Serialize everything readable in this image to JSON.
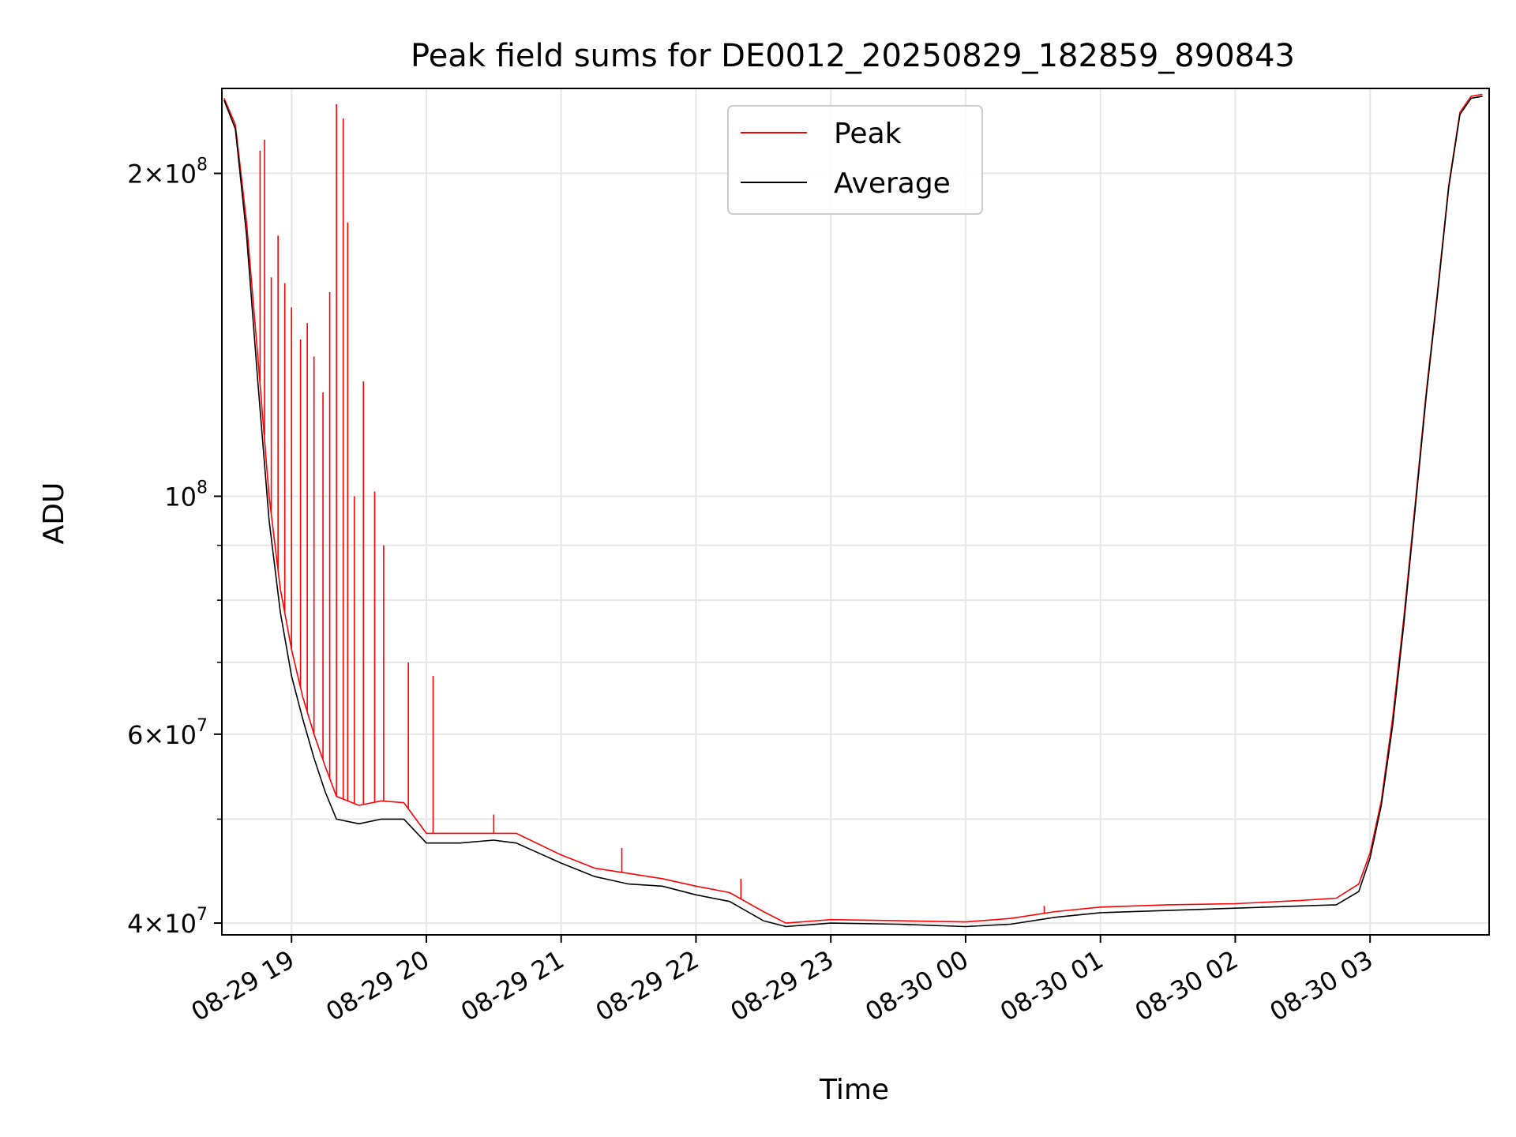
{
  "chart_data": {
    "type": "line",
    "title": "Peak field sums for DE0012_20250829_182859_890843",
    "xlabel": "Time",
    "ylabel": "ADU",
    "yscale": "log",
    "ylim": [
      39000000,
      240000000
    ],
    "xlim": [
      "2025-08-29 18:29",
      "2025-08-30 03:53"
    ],
    "grid": true,
    "legend_position": "top-center",
    "x_ticks": [
      "08-29 19",
      "08-29 20",
      "08-29 21",
      "08-29 22",
      "08-29 23",
      "08-30 00",
      "08-30 01",
      "08-30 02",
      "08-30 03"
    ],
    "x_tick_times": [
      "2025-08-29 19:00",
      "2025-08-29 20:00",
      "2025-08-29 21:00",
      "2025-08-29 22:00",
      "2025-08-29 23:00",
      "2025-08-30 00:00",
      "2025-08-30 01:00",
      "2025-08-30 02:00",
      "2025-08-30 03:00"
    ],
    "y_major_ticks": [
      {
        "value": 40000000,
        "mantissa": "4",
        "exponent": "7"
      },
      {
        "value": 60000000,
        "mantissa": "6",
        "exponent": "7"
      },
      {
        "value": 100000000,
        "mantissa": "",
        "exponent": "8"
      },
      {
        "value": 200000000,
        "mantissa": "2",
        "exponent": "8"
      }
    ],
    "y_minor_ticks": [
      50000000,
      70000000,
      80000000,
      90000000
    ],
    "series": [
      {
        "name": "Peak",
        "color": "#ff0000",
        "x": [
          "2025-08-29 18:30",
          "2025-08-29 18:35",
          "2025-08-29 18:40",
          "2025-08-29 18:45",
          "2025-08-29 18:50",
          "2025-08-29 18:55",
          "2025-08-29 19:00",
          "2025-08-29 19:05",
          "2025-08-29 19:10",
          "2025-08-29 19:15",
          "2025-08-29 19:20",
          "2025-08-29 19:30",
          "2025-08-29 19:40",
          "2025-08-29 19:50",
          "2025-08-29 20:00",
          "2025-08-29 20:15",
          "2025-08-29 20:30",
          "2025-08-29 20:40",
          "2025-08-29 21:00",
          "2025-08-29 21:15",
          "2025-08-29 21:30",
          "2025-08-29 21:45",
          "2025-08-29 22:00",
          "2025-08-29 22:15",
          "2025-08-29 22:30",
          "2025-08-29 22:40",
          "2025-08-29 23:00",
          "2025-08-29 23:30",
          "2025-08-30 00:00",
          "2025-08-30 00:20",
          "2025-08-30 00:40",
          "2025-08-30 01:00",
          "2025-08-30 01:30",
          "2025-08-30 02:00",
          "2025-08-30 02:30",
          "2025-08-30 02:45",
          "2025-08-30 02:55",
          "2025-08-30 03:00",
          "2025-08-30 03:05",
          "2025-08-30 03:10",
          "2025-08-30 03:15",
          "2025-08-30 03:20",
          "2025-08-30 03:25",
          "2025-08-30 03:30",
          "2025-08-30 03:35",
          "2025-08-30 03:40",
          "2025-08-30 03:45",
          "2025-08-30 03:50"
        ],
        "y": [
          235000000,
          222000000,
          180000000,
          135000000,
          100000000,
          82000000,
          72000000,
          65000000,
          60000000,
          56000000,
          52500000,
          51500000,
          52000000,
          51800000,
          48500000,
          48500000,
          48500000,
          48500000,
          46300000,
          45000000,
          44500000,
          44000000,
          43300000,
          42700000,
          41000000,
          40000000,
          40300000,
          40200000,
          40100000,
          40400000,
          41000000,
          41400000,
          41600000,
          41700000,
          42000000,
          42200000,
          43500000,
          46500000,
          52000000,
          62000000,
          77000000,
          98000000,
          125000000,
          155000000,
          195000000,
          228000000,
          236000000,
          237000000
        ]
      },
      {
        "name": "Average",
        "color": "#000000",
        "x": [
          "2025-08-29 18:30",
          "2025-08-29 18:35",
          "2025-08-29 18:40",
          "2025-08-29 18:45",
          "2025-08-29 18:50",
          "2025-08-29 18:55",
          "2025-08-29 19:00",
          "2025-08-29 19:05",
          "2025-08-29 19:10",
          "2025-08-29 19:15",
          "2025-08-29 19:20",
          "2025-08-29 19:30",
          "2025-08-29 19:40",
          "2025-08-29 19:50",
          "2025-08-29 20:00",
          "2025-08-29 20:15",
          "2025-08-29 20:30",
          "2025-08-29 20:40",
          "2025-08-29 21:00",
          "2025-08-29 21:15",
          "2025-08-29 21:30",
          "2025-08-29 21:45",
          "2025-08-29 22:00",
          "2025-08-29 22:15",
          "2025-08-29 22:30",
          "2025-08-29 22:40",
          "2025-08-29 23:00",
          "2025-08-29 23:30",
          "2025-08-30 00:00",
          "2025-08-30 00:20",
          "2025-08-30 00:40",
          "2025-08-30 01:00",
          "2025-08-30 01:30",
          "2025-08-30 02:00",
          "2025-08-30 02:30",
          "2025-08-30 02:45",
          "2025-08-30 02:55",
          "2025-08-30 03:00",
          "2025-08-30 03:05",
          "2025-08-30 03:10",
          "2025-08-30 03:15",
          "2025-08-30 03:20",
          "2025-08-30 03:25",
          "2025-08-30 03:30",
          "2025-08-30 03:35",
          "2025-08-30 03:40",
          "2025-08-30 03:45",
          "2025-08-30 03:50"
        ],
        "y": [
          234000000,
          220000000,
          175000000,
          128000000,
          95000000,
          78000000,
          68000000,
          62000000,
          57000000,
          53000000,
          50000000,
          49500000,
          50000000,
          50000000,
          47500000,
          47500000,
          47800000,
          47500000,
          45500000,
          44200000,
          43500000,
          43300000,
          42500000,
          41900000,
          40200000,
          39700000,
          40000000,
          39900000,
          39700000,
          39900000,
          40500000,
          40900000,
          41100000,
          41300000,
          41500000,
          41600000,
          42800000,
          46000000,
          51500000,
          61000000,
          76000000,
          97000000,
          124000000,
          154000000,
          194000000,
          227000000,
          235000000,
          236000000
        ]
      }
    ],
    "peak_spikes": {
      "x": [
        "2025-08-29 18:46",
        "2025-08-29 18:48",
        "2025-08-29 18:51",
        "2025-08-29 18:54",
        "2025-08-29 18:57",
        "2025-08-29 19:00",
        "2025-08-29 19:04",
        "2025-08-29 19:07",
        "2025-08-29 19:10",
        "2025-08-29 19:14",
        "2025-08-29 19:17",
        "2025-08-29 19:20",
        "2025-08-29 19:23",
        "2025-08-29 19:25",
        "2025-08-29 19:28",
        "2025-08-29 19:32",
        "2025-08-29 19:37",
        "2025-08-29 19:41",
        "2025-08-29 19:52",
        "2025-08-29 20:03",
        "2025-08-29 20:30",
        "2025-08-29 21:27",
        "2025-08-29 22:20",
        "2025-08-30 00:35"
      ],
      "y": [
        210000000,
        215000000,
        160000000,
        175000000,
        158000000,
        150000000,
        140000000,
        145000000,
        135000000,
        125000000,
        155000000,
        232000000,
        225000000,
        180000000,
        100000000,
        128000000,
        101000000,
        90000000,
        70000000,
        68000000,
        50500000,
        47000000,
        44000000,
        41500000
      ]
    }
  },
  "legend": {
    "entries": [
      {
        "label": "Peak",
        "color": "#ff0000"
      },
      {
        "label": "Average",
        "color": "#000000"
      }
    ]
  }
}
